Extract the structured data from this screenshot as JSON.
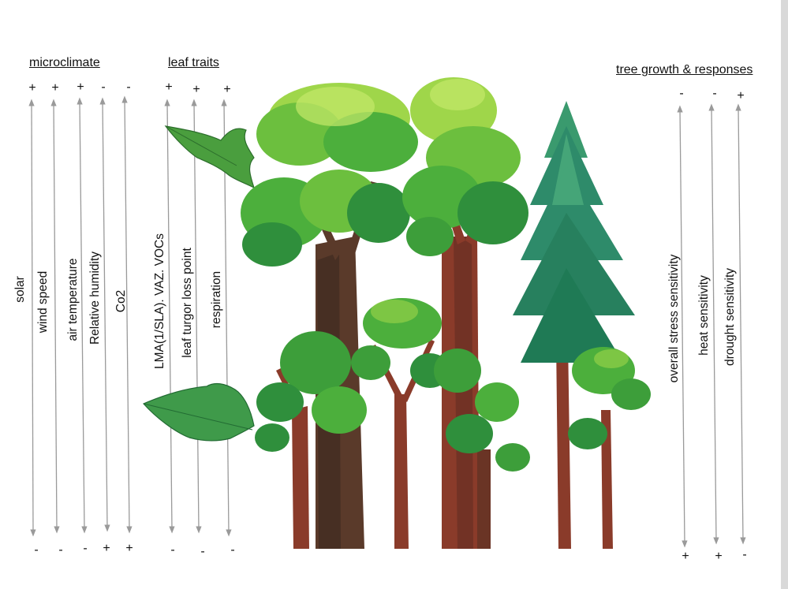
{
  "groups": {
    "microclimate": {
      "heading": "microclimate",
      "variables": [
        {
          "label": "solar",
          "top": "+",
          "bottom": "-"
        },
        {
          "label": "wind speed",
          "top": "+",
          "bottom": "-"
        },
        {
          "label": "air temperature",
          "top": "+",
          "bottom": "-"
        },
        {
          "label": "Relative humidity",
          "top": "-",
          "bottom": "+"
        },
        {
          "label": "Co2",
          "top": "-",
          "bottom": "+"
        }
      ]
    },
    "leaf_traits": {
      "heading": "leaf traits",
      "variables": [
        {
          "label": "LMA(1/SLA). VAZ.  VOCs",
          "top": "+",
          "bottom": "-"
        },
        {
          "label": "leaf turgor loss point",
          "top": "+",
          "bottom": "-"
        },
        {
          "label": "respiration",
          "top": "+",
          "bottom": "-"
        }
      ]
    },
    "tree_growth": {
      "heading": "tree growth & responses",
      "variables": [
        {
          "label": "overall stress sensitivity",
          "top": "-",
          "bottom": "+"
        },
        {
          "label": "heat sensitivity",
          "top": "-",
          "bottom": "+"
        },
        {
          "label": "drought sensitivity",
          "top": "+",
          "bottom": "-"
        }
      ]
    }
  },
  "colors": {
    "arrow": "#9a9a9a",
    "canopy_light": "#9fd64a",
    "canopy_mid": "#4caf3c",
    "canopy_dark": "#1f7a3a",
    "conifer": "#2e8b6a",
    "trunk_brown": "#5a3a2a",
    "trunk_red": "#8a3b2a",
    "leaf_green": "#3f9a4a"
  }
}
